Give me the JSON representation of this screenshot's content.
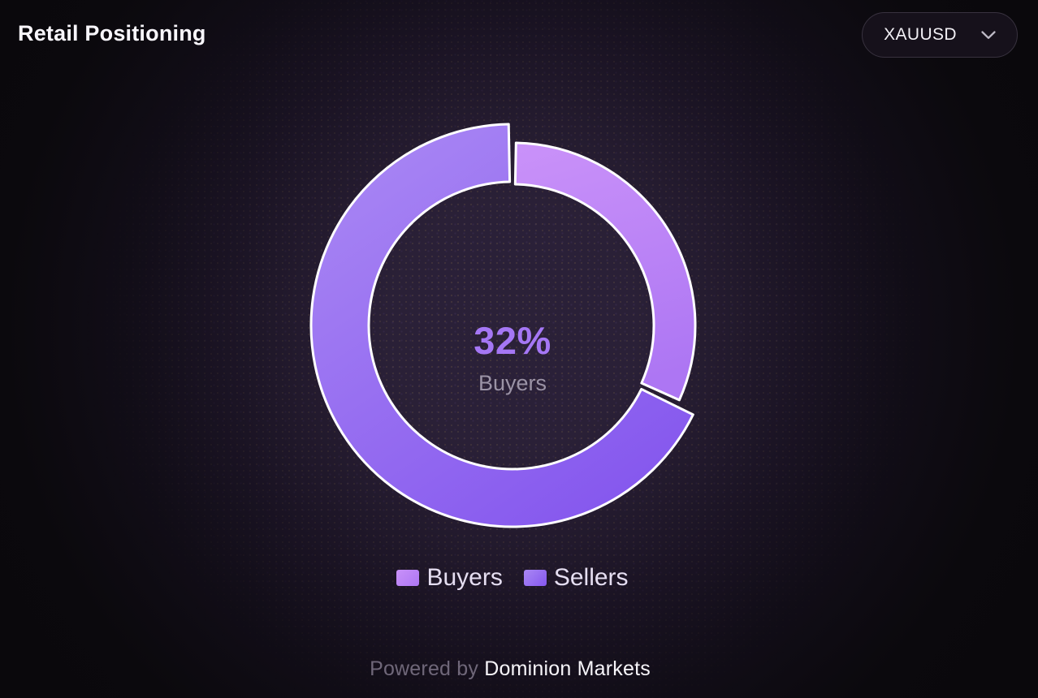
{
  "header": {
    "title": "Retail Positioning"
  },
  "symbol_selector": {
    "value": "XAUUSD",
    "icon": "chevron-down-icon"
  },
  "chart_data": {
    "type": "pie",
    "variant": "donut",
    "title": "Retail Positioning",
    "categories": [
      "Buyers",
      "Sellers"
    ],
    "values": [
      32,
      68
    ],
    "unit": "percent",
    "center_value": "32%",
    "center_label": "Buyers",
    "legend_position": "bottom",
    "slice_border_color": "#ffffff",
    "center_value_color": "#a577f5",
    "series": [
      {
        "name": "Buyers",
        "value": 32,
        "color_start": "#c991f9",
        "color_end": "#ad76f3"
      },
      {
        "name": "Sellers",
        "value": 68,
        "color_start": "#aa88f4",
        "color_end": "#8557ee"
      }
    ]
  },
  "footer": {
    "prefix": "Powered by",
    "brand": "Dominion Markets"
  }
}
